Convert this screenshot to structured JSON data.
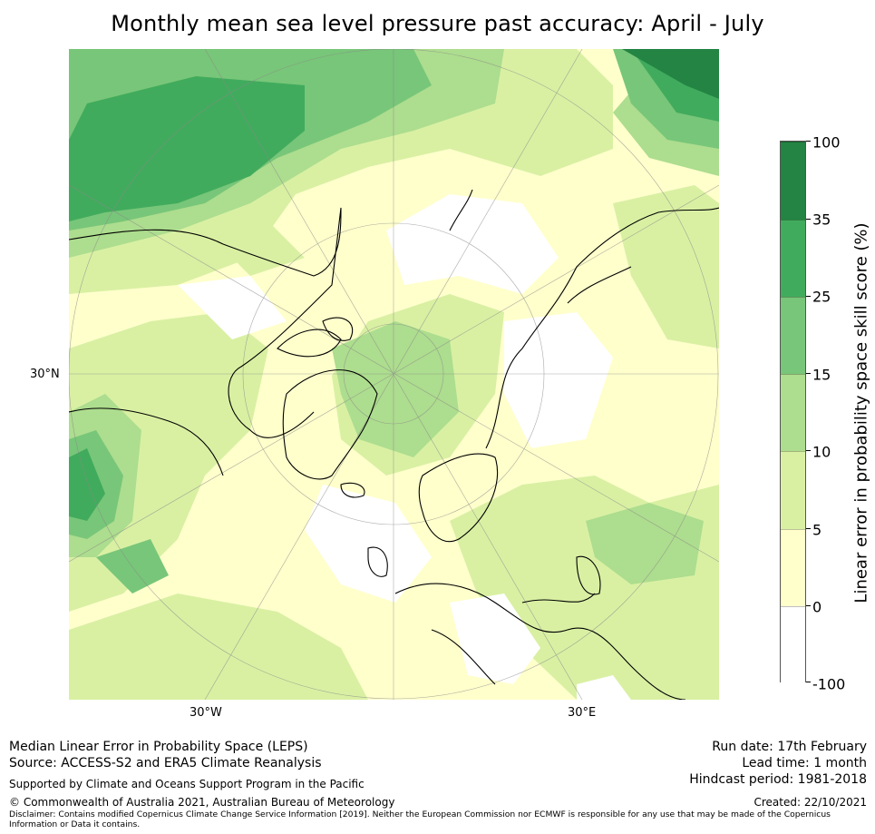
{
  "title": "Monthly mean sea level pressure past accuracy: April - July",
  "map": {
    "projection": "north-polar-stereographic",
    "labels": {
      "lat_30n": "30°N",
      "lon_30w": "30°W",
      "lon_30e": "30°E"
    },
    "colors": {
      "white": "#ffffff",
      "lvl_0_5": "#ffffcc",
      "lvl_5_10": "#d9f0a3",
      "lvl_10_15": "#addd8e",
      "lvl_15_25": "#78c679",
      "lvl_25_35": "#41ab5d",
      "lvl_35_100": "#238443",
      "coast": "#000000",
      "grid": "#888888"
    }
  },
  "colorbar": {
    "title": "Linear error in probability space skill score (%)",
    "ticks": [
      "100",
      "35",
      "25",
      "15",
      "10",
      "5",
      "0",
      "-100"
    ],
    "bins": [
      {
        "from": "35",
        "to": "100",
        "color": "#238443"
      },
      {
        "from": "25",
        "to": "35",
        "color": "#41ab5d"
      },
      {
        "from": "15",
        "to": "25",
        "color": "#78c679"
      },
      {
        "from": "10",
        "to": "15",
        "color": "#addd8e"
      },
      {
        "from": "5",
        "to": "10",
        "color": "#d9f0a3"
      },
      {
        "from": "0",
        "to": "5",
        "color": "#ffffcc"
      },
      {
        "from": "-100",
        "to": "0",
        "color": "#ffffff"
      }
    ]
  },
  "footer": {
    "method": "Median Linear Error in Probability Space (LEPS)",
    "source": "Source: ACCESS-S2 and ERA5 Climate Reanalysis",
    "supported": "Supported by Climate and Oceans Support Program in the Pacific",
    "copyright": "© Commonwealth of Australia 2021, Australian Bureau of Meteorology",
    "disclaimer": "Disclaimer: Contains modified Copernicus Climate Change Service Information [2019]. Neither the European Commission nor ECMWF is responsible for any use that may be made of the Copernicus Information or Data it contains.",
    "run_date": "Run date: 17th February",
    "lead_time": "Lead time: 1 month",
    "hindcast": "Hindcast period: 1981-2018",
    "created": "Created: 22/10/2021"
  }
}
